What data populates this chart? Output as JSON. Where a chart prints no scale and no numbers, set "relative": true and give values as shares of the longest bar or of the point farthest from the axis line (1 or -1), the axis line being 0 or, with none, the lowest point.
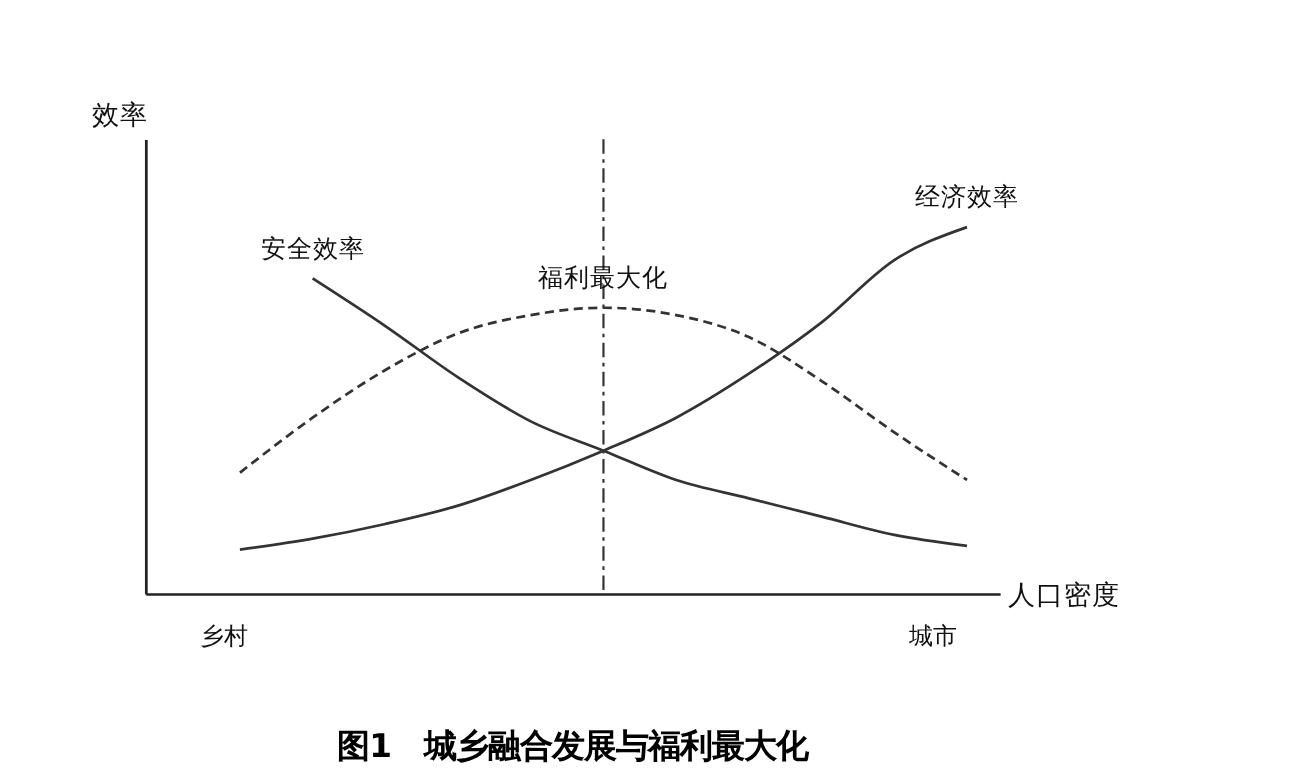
{
  "chart_data": {
    "type": "line",
    "relative": true,
    "title": "图1　城乡融合发展与福利最大化",
    "xlabel": "人口密度",
    "ylabel": "效率",
    "categories": [
      null,
      null,
      null,
      null,
      null,
      null,
      null,
      null,
      null,
      null,
      null
    ],
    "series": [
      {
        "name": "安全效率",
        "color": "#333333",
        "line_style": "solid",
        "values": [
          null,
          0.86,
          0.73,
          0.59,
          0.47,
          0.39,
          0.31,
          0.26,
          0.21,
          0.16,
          0.13
        ]
      },
      {
        "name": "福利最大化",
        "color": "#333333",
        "line_style": "dashed",
        "values": [
          0.33,
          0.48,
          0.61,
          0.71,
          0.76,
          0.78,
          0.76,
          0.7,
          0.58,
          0.44,
          0.31
        ]
      },
      {
        "name": "经济效率",
        "color": "#333333",
        "line_style": "solid",
        "values": [
          0.12,
          0.15,
          0.19,
          0.24,
          0.31,
          0.39,
          0.48,
          0.6,
          0.74,
          0.91,
          1.0
        ]
      }
    ],
    "annotations": [
      "乡村",
      "城市"
    ],
    "grid": false,
    "tick_labels": false,
    "marker": "none"
  }
}
